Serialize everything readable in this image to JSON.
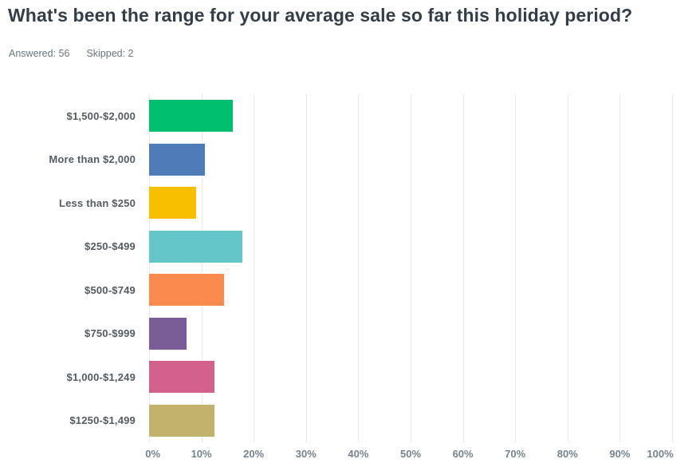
{
  "header": {
    "title": "What's been the range for your average sale so far this holiday period?",
    "answered": "Answered: 56",
    "skipped": "Skipped: 2"
  },
  "chart_data": {
    "type": "bar",
    "orientation": "horizontal",
    "title": "What's been the range for your average sale so far this holiday period?",
    "categories": [
      "$1,500-$2,000",
      "More than $2,000",
      "Less than $250",
      "$250-$499",
      "$500-$749",
      "$750-$999",
      "$1,000-$1,249",
      "$1250-$1,499"
    ],
    "values": [
      16.07,
      10.71,
      8.93,
      17.86,
      14.29,
      7.14,
      12.5,
      12.5
    ],
    "bar_colors": [
      "#00BF6F",
      "#4F7CB8",
      "#F8BE00",
      "#64C6C8",
      "#FB8A4E",
      "#7A5C96",
      "#D4608E",
      "#C2B26B"
    ],
    "xlabel": "",
    "ylabel": "",
    "xlim": [
      0,
      100
    ],
    "x_tick_labels": [
      "0%",
      "10%",
      "20%",
      "30%",
      "40%",
      "50%",
      "60%",
      "70%",
      "80%",
      "90%",
      "100%"
    ],
    "grid": "vertical-only",
    "legend": "none"
  },
  "colors": {
    "background": "#FFFFFF",
    "title_text": "#333E48",
    "stats_text": "#697680",
    "category_label": "#545B62",
    "tick_label": "#76828C",
    "gridline": "#E8E9EA"
  }
}
